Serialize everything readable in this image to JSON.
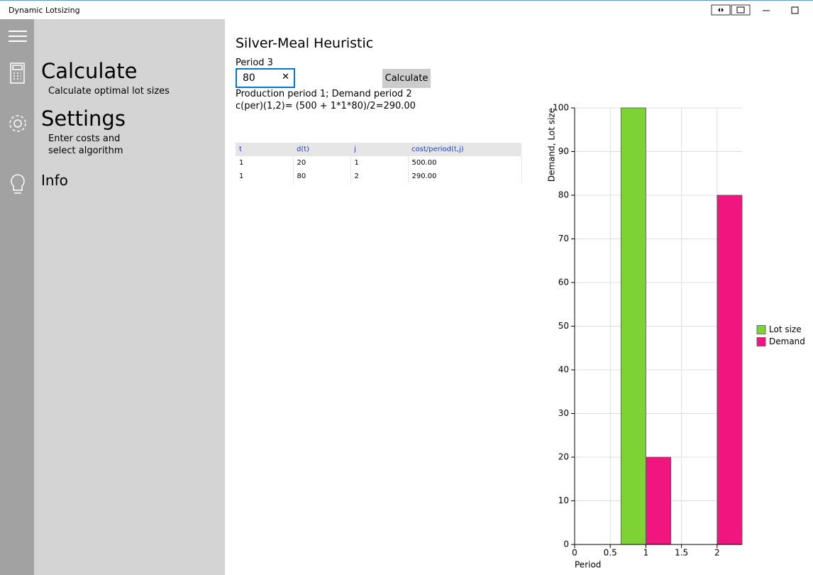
{
  "window": {
    "title": "Dynamic Lotsizing"
  },
  "nav": {
    "items": [
      {
        "label": "Calculate",
        "description": [
          "Calculate optimal lot sizes"
        ]
      },
      {
        "label": "Settings",
        "description": [
          "Enter costs and",
          "select algorithm"
        ]
      },
      {
        "label": "Info"
      }
    ]
  },
  "content": {
    "heading": "Silver-Meal Heuristic",
    "input_label": "Period 3",
    "input_value": "80",
    "button": "Calculate",
    "result_lines": [
      "Production period 1; Demand period 2",
      "c(per)(1,2)= (500 + 1*1*80)/2=290.00"
    ]
  },
  "table": {
    "columns": [
      "t",
      "d(t)",
      "j",
      "cost/period(t,j)"
    ],
    "rows": [
      [
        "1",
        "20",
        "1",
        "500.00"
      ],
      [
        "1",
        "80",
        "2",
        "290.00"
      ]
    ]
  },
  "chart_data": {
    "type": "bar",
    "x_label": "Period",
    "y_label": "Demand, Lot size",
    "x": [
      1,
      2
    ],
    "series": [
      {
        "name": "Lot size",
        "color": "#7ed334",
        "values": [
          100,
          0
        ]
      },
      {
        "name": "Demand",
        "color": "#f0157f",
        "values": [
          20,
          80
        ]
      }
    ],
    "xlim": [
      0,
      2.35
    ],
    "xticks": [
      0,
      0.5,
      1,
      1.5,
      2
    ],
    "ylim": [
      0,
      100
    ],
    "yticks": [
      0,
      10,
      20,
      30,
      40,
      50,
      60,
      70,
      80,
      90,
      100
    ],
    "grid": true,
    "legend": "right"
  }
}
